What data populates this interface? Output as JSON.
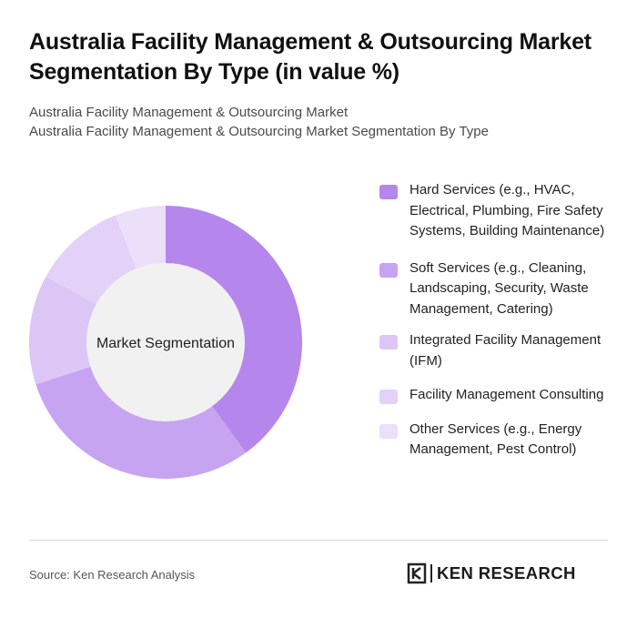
{
  "header": {
    "title": "Australia Facility Management & Outsourcing Market Segmentation By Type (in value %)",
    "subtitle_line1": "Australia Facility Management & Outsourcing Market",
    "subtitle_line2": "Australia Facility Management & Outsourcing Market Segmentation By Type"
  },
  "chart_data": {
    "type": "pie",
    "variant": "donut",
    "center_label": "Market Segmentation",
    "legend_position": "right",
    "series": [
      {
        "name": "Hard Services (e.g., HVAC, Electrical, Plumbing, Fire Safety Systems, Building Maintenance)",
        "value": 40,
        "color": "#b586ec"
      },
      {
        "name": "Soft Services (e.g., Cleaning, Landscaping, Security, Waste Management, Catering)",
        "value": 30,
        "color": "#c7a4f1"
      },
      {
        "name": "Integrated Facility Management (IFM)",
        "value": 13,
        "color": "#dcc6f6"
      },
      {
        "name": "Facility Management Consulting",
        "value": 11,
        "color": "#e3d1f8"
      },
      {
        "name": "Other Services (e.g., Energy Management, Pest Control)",
        "value": 6,
        "color": "#ecdffa"
      }
    ]
  },
  "footer": {
    "source": "Source: Ken Research Analysis",
    "brand": "KEN RESEARCH"
  }
}
